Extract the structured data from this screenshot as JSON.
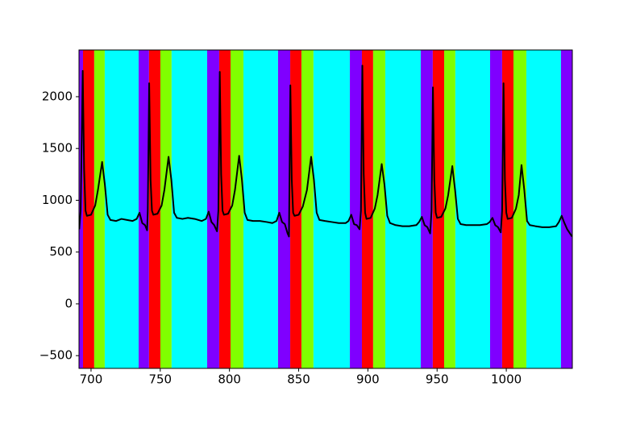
{
  "chart_data": {
    "type": "line",
    "xlim": [
      691.3,
      1047.7
    ],
    "ylim": [
      -623,
      2451
    ],
    "xticks": [
      700,
      750,
      800,
      850,
      900,
      950,
      1000
    ],
    "yticks": [
      {
        "value": -500,
        "label": "−500"
      },
      0,
      500,
      1000,
      1500,
      2000
    ],
    "spans": [
      {
        "start": 691.3,
        "end": 694.2,
        "color": "#7f00ff"
      },
      {
        "start": 694.2,
        "end": 702.3,
        "color": "#ff0000"
      },
      {
        "start": 702.3,
        "end": 709.9,
        "color": "#80ff00"
      },
      {
        "start": 709.9,
        "end": 734.4,
        "color": "#00ffff"
      },
      {
        "start": 734.4,
        "end": 741.9,
        "color": "#7f00ff"
      },
      {
        "start": 741.9,
        "end": 750.1,
        "color": "#ff0000"
      },
      {
        "start": 750.1,
        "end": 758.2,
        "color": "#80ff00"
      },
      {
        "start": 758.2,
        "end": 783.9,
        "color": "#00ffff"
      },
      {
        "start": 783.9,
        "end": 792.6,
        "color": "#7f00ff"
      },
      {
        "start": 792.6,
        "end": 800.8,
        "color": "#ff0000"
      },
      {
        "start": 800.8,
        "end": 810.1,
        "color": "#80ff00"
      },
      {
        "start": 810.1,
        "end": 835.1,
        "color": "#00ffff"
      },
      {
        "start": 835.1,
        "end": 843.9,
        "color": "#7f00ff"
      },
      {
        "start": 843.9,
        "end": 852.0,
        "color": "#ff0000"
      },
      {
        "start": 852.0,
        "end": 860.7,
        "color": "#80ff00"
      },
      {
        "start": 860.7,
        "end": 887.0,
        "color": "#00ffff"
      },
      {
        "start": 887.0,
        "end": 895.7,
        "color": "#7f00ff"
      },
      {
        "start": 895.7,
        "end": 903.8,
        "color": "#ff0000"
      },
      {
        "start": 903.8,
        "end": 912.6,
        "color": "#80ff00"
      },
      {
        "start": 912.6,
        "end": 938.2,
        "color": "#00ffff"
      },
      {
        "start": 938.2,
        "end": 946.9,
        "color": "#7f00ff"
      },
      {
        "start": 946.9,
        "end": 955.1,
        "color": "#ff0000"
      },
      {
        "start": 955.1,
        "end": 963.2,
        "color": "#80ff00"
      },
      {
        "start": 963.2,
        "end": 988.3,
        "color": "#00ffff"
      },
      {
        "start": 988.3,
        "end": 997.0,
        "color": "#7f00ff"
      },
      {
        "start": 997.0,
        "end": 1005.2,
        "color": "#ff0000"
      },
      {
        "start": 1005.2,
        "end": 1014.5,
        "color": "#80ff00"
      },
      {
        "start": 1014.5,
        "end": 1039.5,
        "color": "#00ffff"
      },
      {
        "start": 1039.5,
        "end": 1047.7,
        "color": "#7f00ff"
      }
    ],
    "x": [
      691.5,
      692.5,
      694,
      695,
      696,
      697,
      700,
      703,
      705,
      708,
      710,
      712,
      714,
      718,
      722,
      726,
      730,
      733,
      735,
      737,
      739,
      740.5,
      741,
      742,
      743,
      744,
      745,
      748,
      751,
      753,
      756,
      758,
      760,
      762,
      766,
      770,
      775,
      780,
      783,
      785,
      787,
      789,
      791,
      792,
      793,
      794,
      795,
      796,
      799,
      802,
      804,
      807,
      809,
      811,
      813,
      817,
      822,
      827,
      831,
      834,
      836,
      838,
      840,
      842,
      843,
      844,
      845,
      846,
      847,
      850,
      853,
      856,
      859,
      861,
      863,
      865,
      869,
      874,
      879,
      884,
      886,
      888,
      890,
      892,
      894,
      895,
      896,
      897,
      898,
      899,
      902,
      905,
      907,
      910,
      912,
      914,
      916,
      920,
      925,
      930,
      935,
      937,
      939,
      941,
      943,
      945,
      946,
      947,
      948,
      949,
      950,
      953,
      956,
      958,
      961,
      963,
      965,
      967,
      971,
      976,
      981,
      986,
      988,
      990,
      992,
      994,
      996,
      997,
      998,
      999,
      1000,
      1001,
      1004,
      1007,
      1009,
      1011,
      1013,
      1015,
      1017,
      1021,
      1026,
      1031,
      1036,
      1038,
      1040,
      1042,
      1044,
      1047.5
    ],
    "series": [
      {
        "color": "#000000",
        "values": [
          720,
          900,
          2250,
          1300,
          900,
          850,
          860,
          950,
          1100,
          1370,
          1150,
          860,
          810,
          800,
          820,
          810,
          800,
          820,
          880,
          780,
          760,
          710,
          900,
          2130,
          1200,
          900,
          860,
          870,
          950,
          1100,
          1420,
          1200,
          880,
          830,
          820,
          830,
          820,
          800,
          820,
          890,
          790,
          760,
          700,
          900,
          2240,
          1250,
          900,
          860,
          870,
          950,
          1100,
          1430,
          1200,
          880,
          810,
          800,
          800,
          790,
          780,
          800,
          880,
          790,
          770,
          680,
          650,
          2110,
          1200,
          880,
          850,
          860,
          940,
          1100,
          1420,
          1200,
          880,
          810,
          800,
          790,
          780,
          780,
          800,
          860,
          770,
          760,
          720,
          900,
          2300,
          1250,
          880,
          820,
          830,
          920,
          1050,
          1350,
          1150,
          850,
          780,
          760,
          750,
          750,
          760,
          790,
          840,
          760,
          740,
          680,
          900,
          2090,
          1200,
          880,
          830,
          840,
          920,
          1050,
          1330,
          1100,
          820,
          770,
          760,
          760,
          760,
          770,
          790,
          830,
          760,
          740,
          690,
          900,
          2130,
          1200,
          880,
          820,
          830,
          920,
          1050,
          1340,
          1100,
          800,
          760,
          750,
          740,
          740,
          750,
          790,
          850,
          780,
          720,
          650
        ]
      }
    ]
  }
}
